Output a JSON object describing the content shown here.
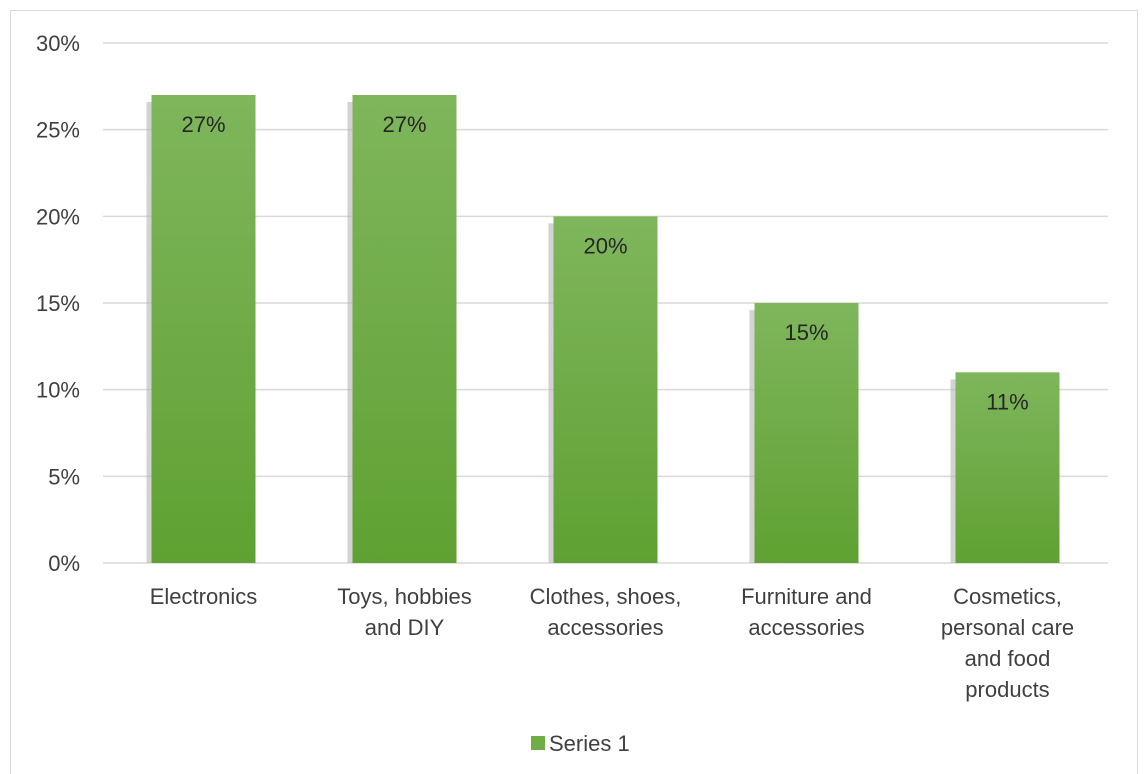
{
  "chart_data": {
    "type": "bar",
    "categories": [
      [
        "Electronics"
      ],
      [
        "Toys, hobbies",
        "and DIY"
      ],
      [
        "Clothes, shoes,",
        "accessories"
      ],
      [
        "Furniture and",
        "accessories"
      ],
      [
        "Cosmetics,",
        "personal care",
        "and food",
        "products"
      ]
    ],
    "series": [
      {
        "name": "Series 1",
        "values": [
          27,
          27,
          20,
          15,
          11
        ],
        "data_labels": [
          "27%",
          "27%",
          "20%",
          "15%",
          "11%"
        ]
      }
    ],
    "ylim": [
      0,
      30
    ],
    "yticks": [
      0,
      5,
      10,
      15,
      20,
      25,
      30
    ],
    "ytick_labels": [
      "0%",
      "5%",
      "10%",
      "15%",
      "20%",
      "25%",
      "30%"
    ],
    "grid": true,
    "legend": "bottom",
    "colors": {
      "bar_top": "#7fb65c",
      "bar_bottom": "#5fa132",
      "shadow": "#b5b5b5",
      "grid": "#d9d9d9",
      "legend_swatch": "#70ad47"
    }
  }
}
